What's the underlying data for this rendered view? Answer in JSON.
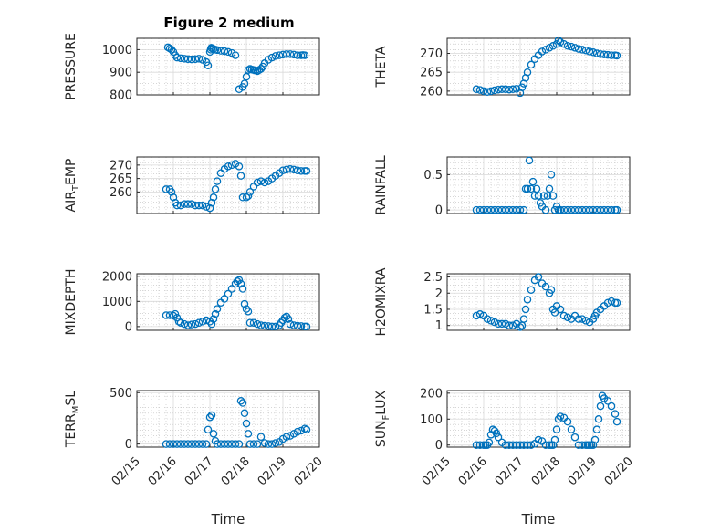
{
  "figure": {
    "title": "Figure 2 medium"
  },
  "colors": {
    "marker": "#0072BD",
    "axis": "#262626",
    "grid": "#d9d9d9"
  },
  "chart_data": [
    {
      "type": "scatter",
      "title": "Figure 2 medium",
      "ylabel": "PRESSURE",
      "ylim": [
        800,
        1050
      ],
      "yticks": [
        800,
        900,
        1000
      ],
      "ytick_labels": [
        "800",
        "900",
        "1000"
      ],
      "xticks": [],
      "ylabel_sub": "",
      "ylabel_after": "",
      "x": [
        0.85,
        0.9,
        0.95,
        1.0,
        1.05,
        1.1,
        1.2,
        1.3,
        1.4,
        1.5,
        1.6,
        1.7,
        1.8,
        1.9,
        1.95,
        2.0,
        2.02,
        2.04,
        2.06,
        2.1,
        2.15,
        2.2,
        2.3,
        2.4,
        2.5,
        2.6,
        2.7,
        2.8,
        2.9,
        2.95,
        3.0,
        3.05,
        3.1,
        3.15,
        3.2,
        3.25,
        3.3,
        3.35,
        3.4,
        3.45,
        3.5,
        3.6,
        3.7,
        3.8,
        3.9,
        4.0,
        4.1,
        4.2,
        4.3,
        4.4,
        4.5,
        4.55,
        4.6
      ],
      "y": [
        1010,
        1005,
        1000,
        990,
        975,
        965,
        962,
        960,
        958,
        957,
        958,
        960,
        955,
        945,
        930,
        990,
        1000,
        1008,
        1005,
        1003,
        1000,
        998,
        995,
        993,
        990,
        985,
        975,
        825,
        835,
        850,
        880,
        910,
        915,
        912,
        910,
        908,
        905,
        910,
        915,
        925,
        940,
        955,
        965,
        972,
        975,
        978,
        980,
        980,
        978,
        975,
        975,
        976,
        975
      ]
    },
    {
      "type": "scatter",
      "ylabel": "THETA",
      "ylim": [
        259,
        274
      ],
      "yticks": [
        260,
        265,
        270
      ],
      "ytick_labels": [
        "260",
        "265",
        "270"
      ],
      "xticks": [],
      "ylabel_sub": "",
      "ylabel_after": "",
      "x": [
        0.8,
        0.9,
        1.0,
        1.1,
        1.2,
        1.3,
        1.4,
        1.5,
        1.6,
        1.7,
        1.8,
        1.9,
        2.0,
        2.05,
        2.1,
        2.15,
        2.2,
        2.3,
        2.4,
        2.5,
        2.6,
        2.7,
        2.8,
        2.9,
        3.0,
        3.05,
        3.1,
        3.2,
        3.3,
        3.4,
        3.5,
        3.6,
        3.7,
        3.8,
        3.9,
        4.0,
        4.1,
        4.2,
        4.3,
        4.4,
        4.5,
        4.6,
        4.65
      ],
      "y": [
        260.5,
        260.3,
        260,
        259.8,
        260,
        260.2,
        260.4,
        260.5,
        260.5,
        260.4,
        260.5,
        260.6,
        259.5,
        261,
        262,
        263.5,
        265,
        267,
        268.5,
        269.5,
        270.5,
        271,
        271.5,
        272,
        272.5,
        273.5,
        273,
        272.5,
        272,
        271.8,
        271.5,
        271.2,
        271,
        270.8,
        270.5,
        270.3,
        270,
        269.8,
        269.7,
        269.6,
        269.5,
        269.5,
        269.4
      ]
    },
    {
      "type": "scatter",
      "ylabel": "AIR",
      "ylabel_sub": "T",
      "ylabel_after": "EMP",
      "ylim": [
        252,
        273
      ],
      "yticks": [
        260,
        265,
        270
      ],
      "ytick_labels": [
        "260",
        "265",
        "270"
      ],
      "xticks": [],
      "x": [
        0.8,
        0.9,
        0.95,
        1.0,
        1.05,
        1.1,
        1.2,
        1.3,
        1.4,
        1.5,
        1.6,
        1.7,
        1.8,
        1.9,
        2.0,
        2.05,
        2.1,
        2.15,
        2.2,
        2.3,
        2.4,
        2.5,
        2.6,
        2.7,
        2.8,
        2.85,
        2.9,
        3.0,
        3.05,
        3.1,
        3.2,
        3.3,
        3.4,
        3.5,
        3.6,
        3.7,
        3.8,
        3.9,
        4.0,
        4.1,
        4.2,
        4.3,
        4.4,
        4.5,
        4.6,
        4.65
      ],
      "y": [
        261,
        261,
        260,
        258,
        256,
        255,
        255,
        255.5,
        255.5,
        255.5,
        255,
        255,
        255,
        254.5,
        254,
        256,
        258,
        261,
        264,
        267,
        268.5,
        269.5,
        270,
        270.5,
        269.5,
        266,
        258,
        258,
        258.5,
        260,
        262,
        263.5,
        264,
        263.5,
        264,
        265,
        266,
        267,
        268,
        268.3,
        268.5,
        268.3,
        268,
        267.8,
        267.8,
        267.8
      ]
    },
    {
      "type": "scatter",
      "ylabel": "RAINFALL",
      "ylim": [
        -0.05,
        0.75
      ],
      "yticks": [
        0,
        0.5
      ],
      "ytick_labels": [
        "0",
        "0.5"
      ],
      "xticks": [],
      "ylabel_sub": "",
      "ylabel_after": "",
      "x": [
        0.8,
        0.9,
        1.0,
        1.1,
        1.2,
        1.3,
        1.4,
        1.5,
        1.6,
        1.7,
        1.8,
        1.9,
        2.0,
        2.1,
        2.15,
        2.2,
        2.25,
        2.3,
        2.35,
        2.4,
        2.45,
        2.5,
        2.55,
        2.6,
        2.65,
        2.7,
        2.75,
        2.8,
        2.85,
        2.9,
        2.95,
        3.0,
        3.05,
        3.1,
        3.2,
        3.3,
        3.4,
        3.5,
        3.6,
        3.7,
        3.8,
        3.9,
        4.0,
        4.1,
        4.2,
        4.3,
        4.4,
        4.5,
        4.6,
        4.65
      ],
      "y": [
        0,
        0,
        0,
        0,
        0,
        0,
        0,
        0,
        0,
        0,
        0,
        0,
        0,
        0,
        0.3,
        0.3,
        0.7,
        0.3,
        0.4,
        0.2,
        0.3,
        0.2,
        0.1,
        0.05,
        0.2,
        0,
        0.2,
        0.3,
        0.5,
        0.2,
        0,
        0.05,
        0,
        0,
        0,
        0,
        0,
        0,
        0,
        0,
        0,
        0,
        0,
        0,
        0,
        0,
        0,
        0,
        0,
        0
      ]
    },
    {
      "type": "scatter",
      "ylabel": "MIXDEPTH",
      "ylim": [
        -150,
        2100
      ],
      "yticks": [
        0,
        1000,
        2000
      ],
      "ytick_labels": [
        "0",
        "1000",
        "2000"
      ],
      "xticks": [],
      "ylabel_sub": "",
      "ylabel_after": "",
      "x": [
        0.8,
        0.9,
        1.0,
        1.05,
        1.1,
        1.15,
        1.2,
        1.3,
        1.4,
        1.5,
        1.6,
        1.7,
        1.8,
        1.9,
        2.0,
        2.05,
        2.1,
        2.15,
        2.2,
        2.3,
        2.4,
        2.5,
        2.6,
        2.7,
        2.75,
        2.8,
        2.85,
        2.9,
        2.95,
        3.0,
        3.05,
        3.1,
        3.2,
        3.3,
        3.4,
        3.5,
        3.6,
        3.7,
        3.8,
        3.9,
        3.95,
        4.0,
        4.05,
        4.1,
        4.15,
        4.2,
        4.3,
        4.4,
        4.5,
        4.6,
        4.65
      ],
      "y": [
        450,
        450,
        430,
        500,
        350,
        200,
        150,
        100,
        50,
        80,
        100,
        150,
        200,
        250,
        200,
        100,
        300,
        500,
        700,
        950,
        1100,
        1300,
        1500,
        1700,
        1800,
        1850,
        1700,
        1500,
        900,
        700,
        600,
        150,
        150,
        100,
        50,
        30,
        20,
        0,
        0,
        50,
        150,
        250,
        350,
        400,
        300,
        100,
        50,
        30,
        20,
        0,
        0
      ]
    },
    {
      "type": "scatter",
      "ylabel": "H2OMIXRA",
      "ylim": [
        0.85,
        2.6
      ],
      "yticks": [
        1,
        1.5,
        2,
        2.5
      ],
      "ytick_labels": [
        "1",
        "1.5",
        "2",
        "2.5"
      ],
      "xticks": [],
      "ylabel_sub": "",
      "ylabel_after": "",
      "x": [
        0.8,
        0.9,
        1.0,
        1.1,
        1.2,
        1.3,
        1.4,
        1.5,
        1.6,
        1.7,
        1.8,
        1.9,
        2.0,
        2.05,
        2.1,
        2.15,
        2.2,
        2.3,
        2.4,
        2.5,
        2.6,
        2.7,
        2.8,
        2.85,
        2.9,
        2.95,
        3.0,
        3.1,
        3.2,
        3.3,
        3.4,
        3.5,
        3.6,
        3.7,
        3.8,
        3.9,
        4.0,
        4.05,
        4.1,
        4.2,
        4.3,
        4.4,
        4.5,
        4.6,
        4.65
      ],
      "y": [
        1.3,
        1.35,
        1.3,
        1.2,
        1.15,
        1.1,
        1.05,
        1.05,
        1.05,
        1.0,
        1.0,
        1.05,
        0.95,
        1.0,
        1.2,
        1.5,
        1.8,
        2.1,
        2.4,
        2.5,
        2.3,
        2.2,
        2.0,
        2.1,
        1.5,
        1.4,
        1.6,
        1.5,
        1.3,
        1.25,
        1.2,
        1.3,
        1.2,
        1.2,
        1.15,
        1.1,
        1.2,
        1.3,
        1.4,
        1.5,
        1.6,
        1.7,
        1.75,
        1.7,
        1.7
      ]
    },
    {
      "type": "scatter",
      "ylabel": "TERR",
      "ylabel_sub": "M",
      "ylabel_after": "SL",
      "ylim": [
        -30,
        520
      ],
      "yticks": [
        0,
        500
      ],
      "ytick_labels": [
        "0",
        "500"
      ],
      "xticks": [
        0,
        1,
        2,
        3,
        4,
        5
      ],
      "xtick_labels": [
        "02/15",
        "02/16",
        "02/17",
        "02/18",
        "02/19",
        "02/20"
      ],
      "xlabel": "Time",
      "x": [
        0.8,
        0.9,
        1.0,
        1.1,
        1.2,
        1.3,
        1.4,
        1.5,
        1.6,
        1.7,
        1.8,
        1.9,
        1.95,
        2.0,
        2.05,
        2.1,
        2.15,
        2.2,
        2.3,
        2.4,
        2.5,
        2.6,
        2.7,
        2.8,
        2.85,
        2.9,
        2.95,
        3.0,
        3.05,
        3.1,
        3.2,
        3.3,
        3.4,
        3.5,
        3.6,
        3.7,
        3.8,
        3.9,
        4.0,
        4.1,
        4.2,
        4.3,
        4.4,
        4.5,
        4.6,
        4.65
      ],
      "y": [
        0,
        0,
        0,
        0,
        0,
        0,
        0,
        0,
        0,
        0,
        0,
        0,
        140,
        260,
        280,
        100,
        30,
        0,
        0,
        0,
        0,
        0,
        0,
        0,
        420,
        400,
        300,
        200,
        100,
        0,
        0,
        0,
        70,
        10,
        0,
        0,
        10,
        20,
        50,
        70,
        80,
        100,
        120,
        130,
        150,
        140
      ]
    },
    {
      "type": "scatter",
      "ylabel": "SUN",
      "ylabel_sub": "F",
      "ylabel_after": "LUX",
      "ylim": [
        -8,
        210
      ],
      "yticks": [
        0,
        100,
        200
      ],
      "ytick_labels": [
        "0",
        "100",
        "200"
      ],
      "xticks": [
        0,
        1,
        2,
        3,
        4,
        5
      ],
      "xtick_labels": [
        "02/15",
        "02/16",
        "02/17",
        "02/18",
        "02/19",
        "02/20"
      ],
      "xlabel": "Time",
      "x": [
        0.8,
        0.9,
        1.0,
        1.05,
        1.1,
        1.15,
        1.2,
        1.25,
        1.3,
        1.35,
        1.4,
        1.5,
        1.6,
        1.7,
        1.8,
        1.9,
        2.0,
        2.1,
        2.2,
        2.3,
        2.4,
        2.5,
        2.6,
        2.7,
        2.8,
        2.85,
        2.9,
        2.95,
        3.0,
        3.05,
        3.1,
        3.2,
        3.3,
        3.4,
        3.5,
        3.6,
        3.7,
        3.8,
        3.85,
        3.9,
        3.95,
        4.0,
        4.05,
        4.1,
        4.15,
        4.2,
        4.25,
        4.3,
        4.4,
        4.5,
        4.6,
        4.65
      ],
      "y": [
        0,
        0,
        0,
        0,
        0,
        10,
        40,
        60,
        55,
        45,
        30,
        10,
        0,
        0,
        0,
        0,
        0,
        0,
        0,
        0,
        5,
        20,
        15,
        0,
        0,
        0,
        0,
        20,
        60,
        100,
        110,
        105,
        90,
        60,
        30,
        0,
        0,
        0,
        0,
        0,
        0,
        0,
        20,
        60,
        100,
        150,
        190,
        180,
        170,
        150,
        120,
        90
      ]
    }
  ]
}
